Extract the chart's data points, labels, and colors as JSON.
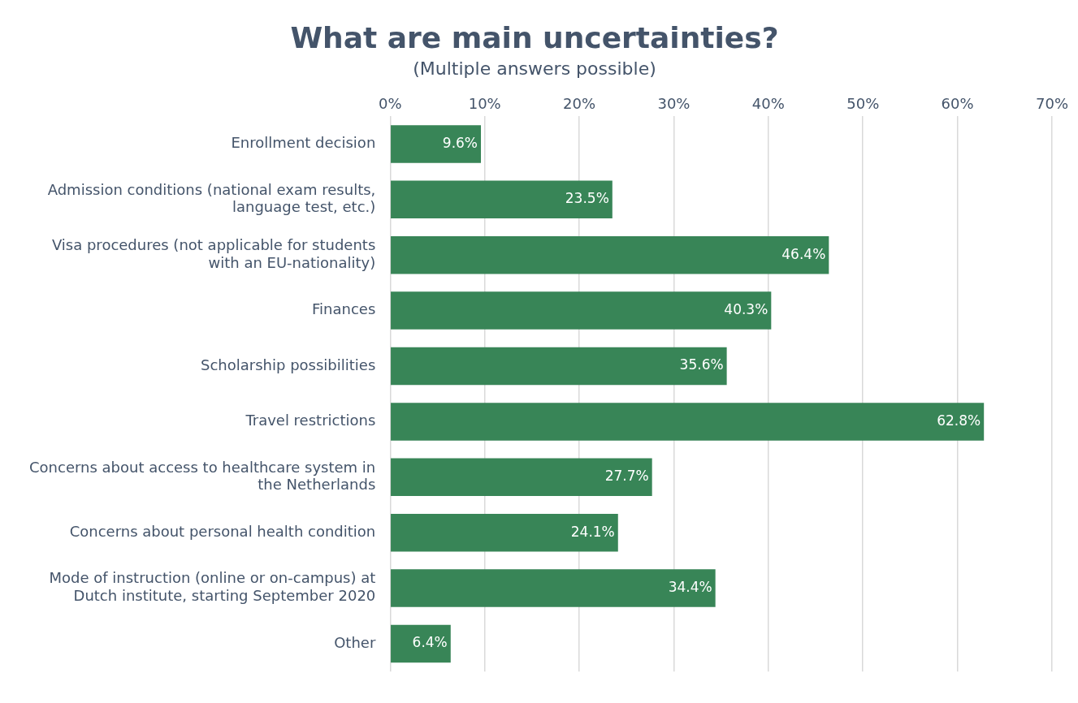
{
  "chart_data": {
    "type": "bar",
    "orientation": "horizontal",
    "title": "What are main uncertainties?",
    "subtitle": "(Multiple answers possible)",
    "categories": [
      "Enrollment decision",
      "Admission conditions (national exam results, language test, etc.)",
      "Visa procedures (not applicable for students with an EU-nationality)",
      "Finances",
      "Scholarship possibilities",
      "Travel restrictions",
      "Concerns about access to healthcare system in the Netherlands",
      "Concerns about personal health condition",
      "Mode of instruction (online or on-campus) at Dutch institute, starting September 2020",
      "Other"
    ],
    "values": [
      9.6,
      23.5,
      46.4,
      40.3,
      35.6,
      62.8,
      27.7,
      24.1,
      34.4,
      6.4
    ],
    "value_labels": [
      "9.6%",
      "23.5%",
      "46.4%",
      "40.3%",
      "35.6%",
      "62.8%",
      "27.7%",
      "24.1%",
      "34.4%",
      "6.4%"
    ],
    "color": "#388557",
    "xlim": [
      0,
      70
    ],
    "xticks": [
      {
        "value": 0,
        "label": "0%"
      },
      {
        "value": 10,
        "label": "10%"
      },
      {
        "value": 20,
        "label": "20%"
      },
      {
        "value": 30,
        "label": "30%"
      },
      {
        "value": 40,
        "label": "40%"
      },
      {
        "value": 50,
        "label": "50%"
      },
      {
        "value": 60,
        "label": "60%"
      },
      {
        "value": 70,
        "label": "70%"
      }
    ],
    "grid": "x",
    "legend": false
  }
}
